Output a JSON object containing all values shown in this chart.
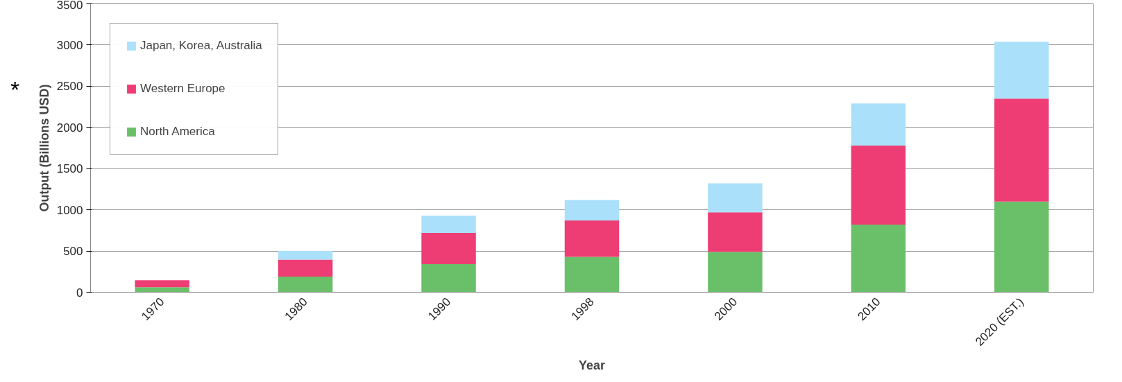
{
  "chart_data": {
    "type": "bar",
    "stacked": true,
    "xlabel": "Year",
    "ylabel": "Output (Billions USD)",
    "categories": [
      "1970",
      "1980",
      "1990",
      "1998",
      "2000",
      "2010",
      "2020 (EST.)"
    ],
    "series": [
      {
        "name": "North America",
        "color": "#6abf69",
        "values": [
          60,
          190,
          340,
          430,
          490,
          820,
          1100
        ]
      },
      {
        "name": "Western Europe",
        "color": "#ee3d74",
        "values": [
          85,
          205,
          380,
          440,
          480,
          960,
          1250
        ]
      },
      {
        "name": "Japan, Korea, Australia",
        "color": "#aae0fa",
        "values": [
          0,
          105,
          210,
          250,
          350,
          510,
          690
        ]
      }
    ],
    "ylim": [
      0,
      3500
    ],
    "yticks": [
      0,
      500,
      1000,
      1500,
      2000,
      2500,
      3000,
      3500
    ],
    "grid": "y",
    "legend": "top left",
    "annotations": [
      "*"
    ]
  }
}
